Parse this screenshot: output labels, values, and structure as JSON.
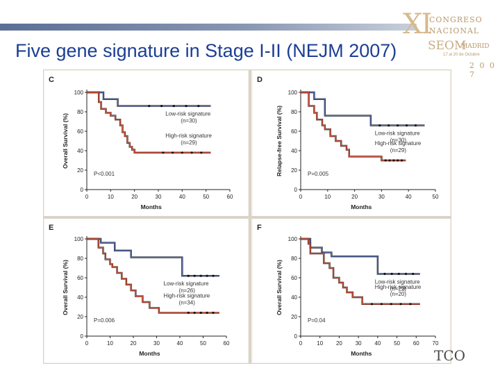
{
  "slide": {
    "title": "Five gene signature in Stage I-II (NEJM 2007)",
    "logo": {
      "numeral": "XI",
      "line1": "CONGRESO",
      "line2": "NACIONAL",
      "line3": "SEOM",
      "city": "MADRID",
      "dates": "17 al 20 de Octubre",
      "year": "2 0 0 7"
    },
    "footer_logo": "TCO"
  },
  "colors": {
    "low": "#5a6fb0",
    "high": "#e0573f",
    "dark": "#222222",
    "title": "#1b3e94"
  },
  "chart_data": [
    {
      "type": "line",
      "panel": "C",
      "xlabel": "Months",
      "ylabel": "Overall Survival (%)",
      "xticks": [
        "0",
        "10",
        "20",
        "30",
        "40",
        "50",
        "60"
      ],
      "yticks": [
        "0",
        "20",
        "40",
        "60",
        "80",
        "100"
      ],
      "xlim": [
        0,
        60
      ],
      "ylim": [
        0,
        100
      ],
      "pvalue": "P<0.001",
      "series": [
        {
          "name": "Low-risk signature",
          "n": "(n=30)",
          "x": [
            0,
            7,
            7,
            13,
            13,
            21,
            52
          ],
          "y": [
            100,
            100,
            93,
            93,
            86,
            86,
            86
          ]
        },
        {
          "name": "High-risk signature",
          "n": "(n=29)",
          "x": [
            0,
            5,
            6,
            8,
            10,
            12,
            14,
            15,
            16,
            17,
            18,
            19,
            20,
            25,
            28,
            52
          ],
          "y": [
            100,
            90,
            83,
            79,
            76,
            72,
            66,
            59,
            55,
            48,
            44,
            41,
            38,
            38,
            38,
            38
          ]
        }
      ]
    },
    {
      "type": "line",
      "panel": "D",
      "xlabel": "Months",
      "ylabel": "Relapse-free Survival (%)",
      "xticks": [
        "0",
        "10",
        "20",
        "30",
        "40",
        "50"
      ],
      "yticks": [
        "0",
        "20",
        "40",
        "60",
        "80",
        "100"
      ],
      "xlim": [
        0,
        50
      ],
      "ylim": [
        0,
        100
      ],
      "pvalue": "P=0.005",
      "series": [
        {
          "name": "Low-risk signature",
          "n": "(n=30)",
          "x": [
            0,
            5,
            5,
            9,
            9,
            26,
            26,
            46
          ],
          "y": [
            100,
            100,
            93,
            93,
            76,
            76,
            66,
            66
          ]
        },
        {
          "name": "High-risk signature",
          "n": "(n=29)",
          "x": [
            0,
            3,
            5,
            6,
            8,
            9,
            11,
            13,
            15,
            17,
            18,
            26,
            30,
            39
          ],
          "y": [
            100,
            86,
            79,
            72,
            66,
            62,
            55,
            50,
            45,
            41,
            34,
            34,
            30,
            30
          ]
        }
      ]
    },
    {
      "type": "line",
      "panel": "E",
      "xlabel": "Months",
      "ylabel": "Overall Survival (%)",
      "xticks": [
        "0",
        "10",
        "20",
        "30",
        "40",
        "50",
        "60"
      ],
      "yticks": [
        "0",
        "20",
        "40",
        "60",
        "80",
        "100"
      ],
      "xlim": [
        0,
        60
      ],
      "ylim": [
        0,
        100
      ],
      "pvalue": "P=0.006",
      "series": [
        {
          "name": "Low-risk signature",
          "n": "(n=26)",
          "x": [
            0,
            6,
            6,
            12,
            12,
            19,
            19,
            39,
            41,
            57
          ],
          "y": [
            100,
            100,
            96,
            96,
            88,
            88,
            81,
            81,
            62,
            62
          ]
        },
        {
          "name": "High-risk signature",
          "n": "(n=34)",
          "x": [
            0,
            5,
            7,
            8,
            10,
            11,
            13,
            15,
            17,
            19,
            21,
            24,
            27,
            31,
            41,
            57
          ],
          "y": [
            100,
            91,
            85,
            79,
            74,
            71,
            65,
            59,
            53,
            47,
            41,
            35,
            29,
            24,
            24,
            24
          ]
        }
      ]
    },
    {
      "type": "line",
      "panel": "F",
      "xlabel": "Months",
      "ylabel": "Overall Survival (%)",
      "xticks": [
        "0",
        "10",
        "20",
        "30",
        "40",
        "50",
        "60",
        "70"
      ],
      "yticks": [
        "0",
        "20",
        "40",
        "60",
        "80",
        "100"
      ],
      "xlim": [
        0,
        70
      ],
      "ylim": [
        0,
        100
      ],
      "pvalue": "P=0.04",
      "series": [
        {
          "name": "Low-risk signature",
          "n": "(n=22)",
          "x": [
            0,
            5,
            5,
            11,
            11,
            16,
            16,
            40,
            40,
            62
          ],
          "y": [
            100,
            100,
            91,
            91,
            86,
            86,
            82,
            82,
            64,
            64
          ]
        },
        {
          "name": "High-risk signature",
          "n": "(n=20)",
          "x": [
            0,
            4,
            5,
            10,
            12,
            15,
            17,
            20,
            22,
            24,
            27,
            32,
            62
          ],
          "y": [
            100,
            95,
            85,
            85,
            75,
            70,
            60,
            55,
            50,
            45,
            40,
            33,
            33
          ]
        }
      ]
    }
  ]
}
